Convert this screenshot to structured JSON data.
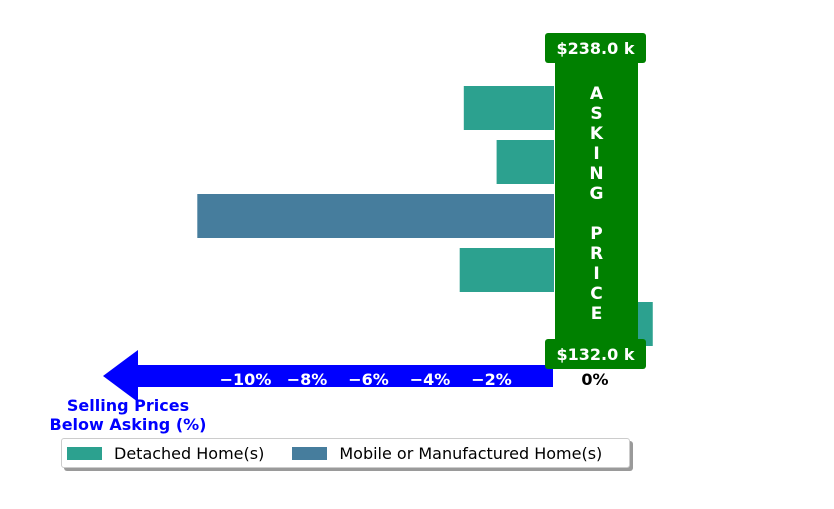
{
  "chart_data": {
    "type": "bar",
    "orientation": "horizontal",
    "xlabel": "Selling Prices\nBelow Asking (%)",
    "xticks": [
      -10,
      -8,
      -6,
      -4,
      -2,
      0
    ],
    "xtick_labels": [
      "−10%",
      "−8%",
      "−6%",
      "−4%",
      "−2%",
      "0%"
    ],
    "xlim": [
      -13.3,
      2.3
    ],
    "bars": [
      {
        "series": "Detached Home(s)",
        "value": -2.2
      },
      {
        "series": "Detached Home(s)",
        "value": -1.4
      },
      {
        "series": "Mobile or Manufactured Home(s)",
        "value": -8.7
      },
      {
        "series": "Detached Home(s)",
        "value": -2.3
      },
      {
        "series": "Detached Home(s)",
        "value": 0.2
      }
    ],
    "series": [
      {
        "name": "Detached Home(s)",
        "color": "#2ca18f"
      },
      {
        "name": "Mobile or Manufactured Home(s)",
        "color": "#467d9d"
      }
    ],
    "asking_label": "A\nS\nK\nI\nN\nG\n\nP\nR\nI\nC\nE",
    "asking_color": "#008000",
    "price_high": "$238.0 k",
    "price_low": "$132.0 k",
    "arrow_color": "#0000ff",
    "legend_position": "bottom"
  }
}
